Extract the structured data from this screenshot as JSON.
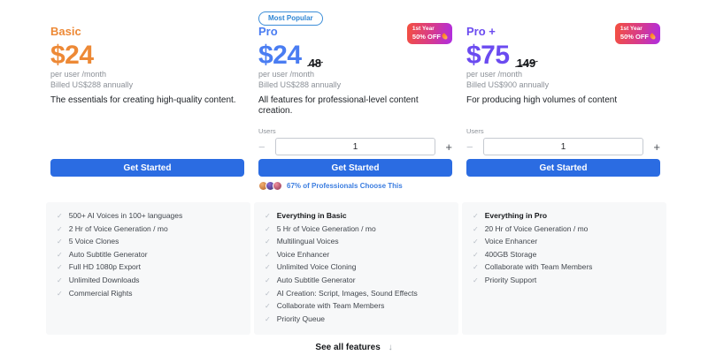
{
  "icons": {
    "check": "✓",
    "arrow_down": "↓",
    "minus": "−",
    "plus": "+"
  },
  "colors": {
    "basic_accent": "#ED8936",
    "pro_accent": "#4A7DF2",
    "proplus_accent": "#6B4BF0",
    "cta_blue": "#2B6CE2",
    "badge_gradient_start": "#F4503E",
    "badge_gradient_end": "#AE2CE4",
    "popular_pill_blue": "#3D8ED8",
    "panel_bg": "#F7F8F9"
  },
  "plans": [
    {
      "name": "Basic",
      "price": "$24",
      "per_user": "per user /month",
      "billed": "Billed US$288 annually",
      "description": "The essentials for creating high-quality content.",
      "cta": "Get Started",
      "features": [
        {
          "label": "500+ AI Voices in 100+ languages",
          "bold": false
        },
        {
          "label": "2 Hr of Voice Generation / mo",
          "bold": false
        },
        {
          "label": "5 Voice Clones",
          "bold": false
        },
        {
          "label": "Auto Subtitle Generator",
          "bold": false
        },
        {
          "label": "Full HD 1080p Export",
          "bold": false
        },
        {
          "label": "Unlimited Downloads",
          "bold": false
        },
        {
          "label": "Commercial Rights",
          "bold": false
        }
      ]
    },
    {
      "most_popular": "Most Popular",
      "name": "Pro",
      "discount_line1": "1st Year",
      "discount_line2": "50% OFF",
      "price": "$24",
      "old_price": "48",
      "per_user": "per user /month",
      "billed": "Billed US$288 annually",
      "description": "All features for professional-level content creation.",
      "users_label": "Users",
      "users_value": "1",
      "cta": "Get Started",
      "social_proof": "67% of Professionals Choose This",
      "features": [
        {
          "label": "Everything in Basic",
          "bold": true
        },
        {
          "label": "5 Hr of Voice Generation / mo",
          "bold": false
        },
        {
          "label": "Multilingual Voices",
          "bold": false
        },
        {
          "label": "Voice Enhancer",
          "bold": false
        },
        {
          "label": "Unlimited Voice Cloning",
          "bold": false
        },
        {
          "label": "Auto Subtitle Generator",
          "bold": false
        },
        {
          "label": "AI Creation: Script, Images, Sound Effects",
          "bold": false
        },
        {
          "label": "Collaborate with Team Members",
          "bold": false
        },
        {
          "label": "Priority Queue",
          "bold": false
        }
      ]
    },
    {
      "name": "Pro +",
      "discount_line1": "1st Year",
      "discount_line2": "50% OFF",
      "price": "$75",
      "old_price": "149",
      "per_user": "per user /month",
      "billed": "Billed US$900 annually",
      "description": "For producing high volumes of content",
      "users_label": "Users",
      "users_value": "1",
      "cta": "Get Started",
      "features": [
        {
          "label": "Everything in Pro",
          "bold": true
        },
        {
          "label": "20 Hr of Voice Generation / mo",
          "bold": false
        },
        {
          "label": "Voice Enhancer",
          "bold": false
        },
        {
          "label": "400GB Storage",
          "bold": false
        },
        {
          "label": "Collaborate with Team Members",
          "bold": false
        },
        {
          "label": "Priority Support",
          "bold": false
        }
      ]
    }
  ],
  "footer": {
    "see_all": "See all features"
  }
}
